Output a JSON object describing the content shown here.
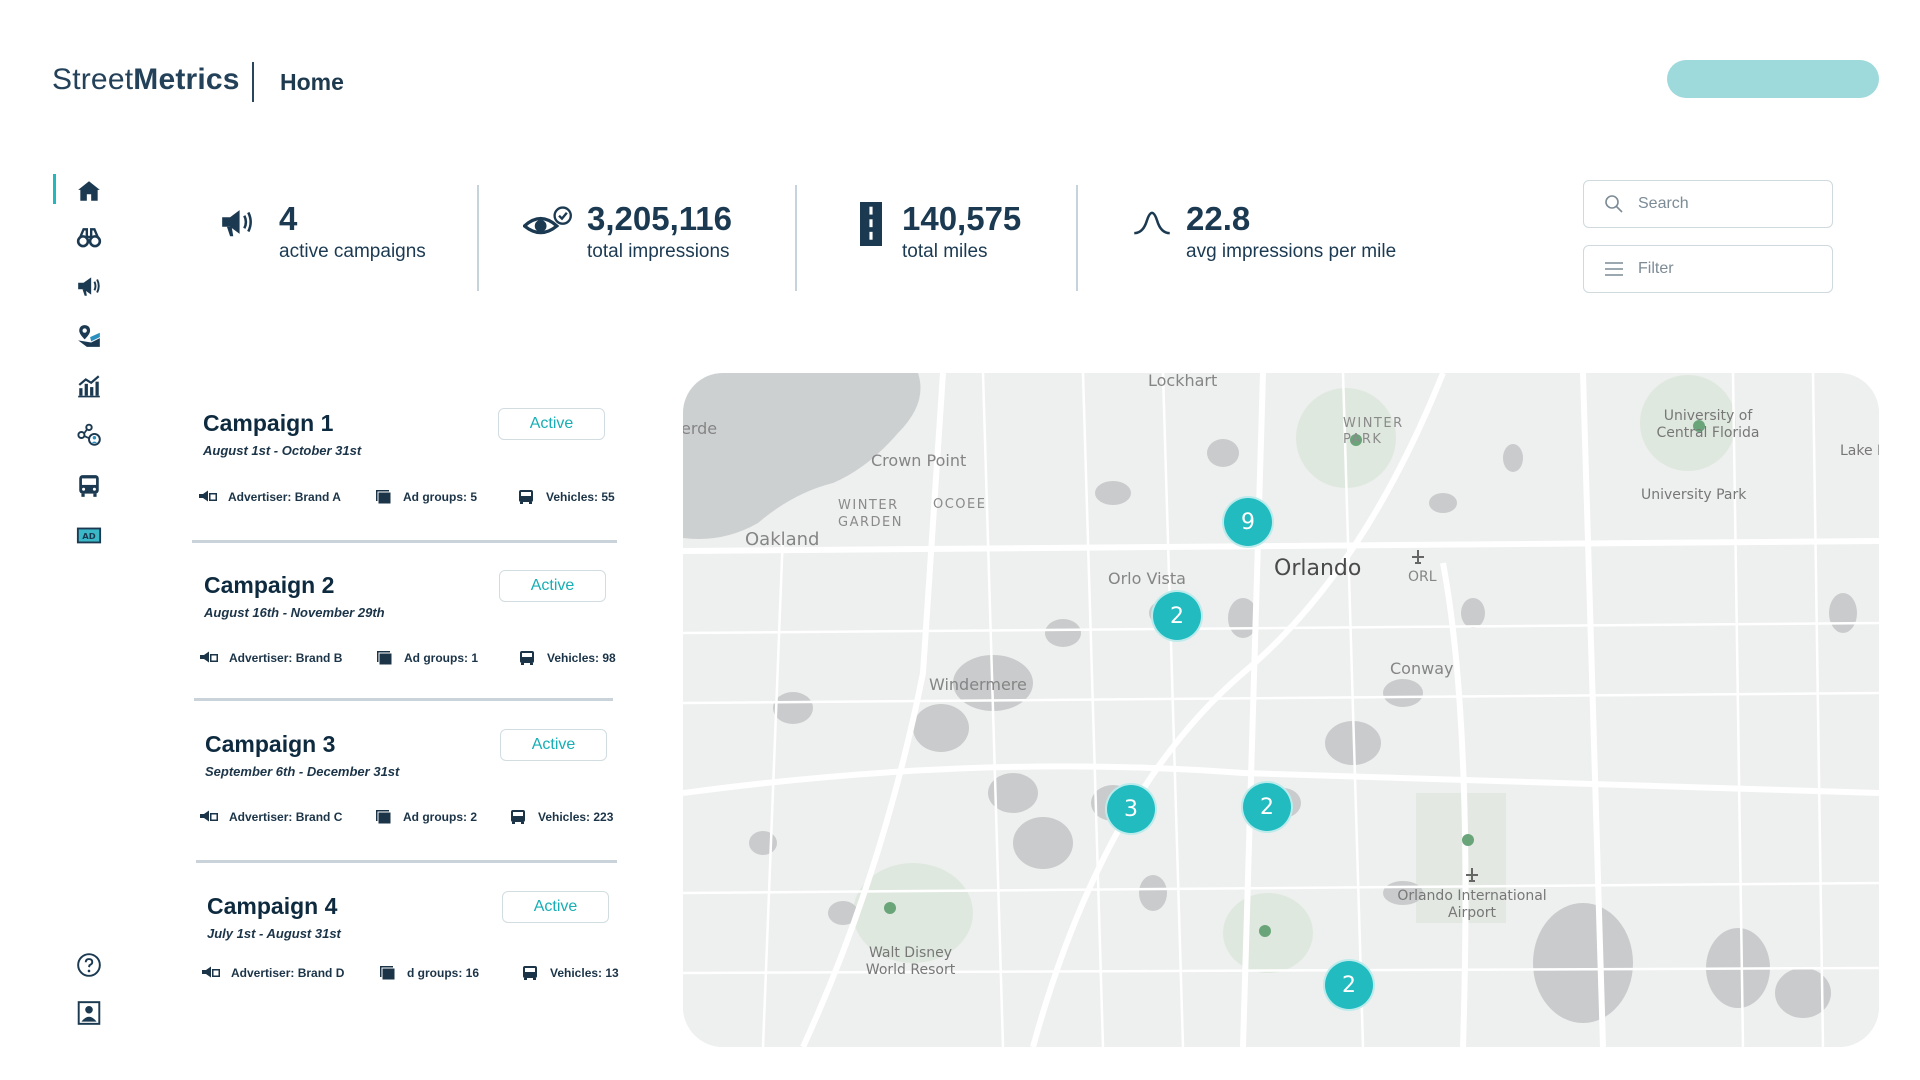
{
  "header": {
    "logo_light": "Street",
    "logo_bold": "Metrics",
    "page_title": "Home"
  },
  "sidebar": {
    "items": [
      {
        "icon": "home-icon",
        "active": true
      },
      {
        "icon": "binoculars-icon"
      },
      {
        "icon": "megaphone-icon"
      },
      {
        "icon": "map-pin-icon"
      },
      {
        "icon": "chart-icon"
      },
      {
        "icon": "network-user-icon"
      },
      {
        "icon": "bus-icon"
      },
      {
        "icon": "ad-icon",
        "badge": "AD"
      },
      {
        "icon": "help-icon"
      },
      {
        "icon": "profile-icon"
      }
    ]
  },
  "stats": [
    {
      "icon": "megaphone-icon",
      "value": "4",
      "label": "active campaigns"
    },
    {
      "icon": "eye-check-icon",
      "value": "3,205,116",
      "label": "total impressions"
    },
    {
      "icon": "road-icon",
      "value": "140,575",
      "label": "total miles"
    },
    {
      "icon": "curve-icon",
      "value": "22.8",
      "label": "avg impressions per mile"
    }
  ],
  "search": {
    "placeholder": "Search"
  },
  "filter": {
    "label": "Filter"
  },
  "campaigns": [
    {
      "title": "Campaign 1",
      "dates": "August 1st - October 31st",
      "status": "Active",
      "advertiser": "Advertiser: Brand A",
      "ad_groups": "Ad groups: 5",
      "vehicles": "Vehicles: 55"
    },
    {
      "title": "Campaign 2",
      "dates": "August 16th - November 29th",
      "status": "Active",
      "advertiser": "Advertiser: Brand B",
      "ad_groups": "Ad groups: 1",
      "vehicles": "Vehicles: 98"
    },
    {
      "title": "Campaign 3",
      "dates": "September 6th - December 31st",
      "status": "Active",
      "advertiser": "Advertiser: Brand C",
      "ad_groups": "Ad groups: 2",
      "vehicles": "Vehicles: 223"
    },
    {
      "title": "Campaign 4",
      "dates": "July 1st - August 31st",
      "status": "Active",
      "advertiser": "Advertiser: Brand D",
      "ad_groups": "d groups: 16",
      "vehicles": "Vehicles: 13"
    }
  ],
  "map": {
    "labels": {
      "lockhart": "Lockhart",
      "verde": "erde",
      "crown_point": "Crown Point",
      "winter_garden": "WINTER GARDEN",
      "ocoee": "OCOEE",
      "oakland": "Oakland",
      "orlo_vista": "Orlo Vista",
      "orlando": "Orlando",
      "orl": "ORL",
      "winter_park": "WINTER PARK",
      "ucf": "University of Central Florida",
      "university_park": "University Park",
      "lake_p": "Lake P",
      "conway": "Conway",
      "windermere": "Windermere",
      "mco": "Orlando International Airport",
      "disney": "Walt Disney World Resort"
    },
    "clusters": [
      "9",
      "2",
      "3",
      "2",
      "2"
    ]
  },
  "colors": {
    "accent": "#22bcc0",
    "header_button": "#9ed9db",
    "text": "#1b3a52"
  }
}
